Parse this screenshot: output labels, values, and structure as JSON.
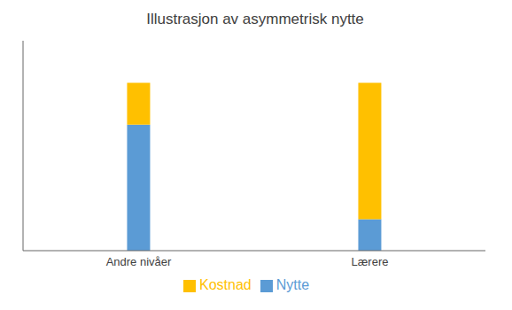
{
  "chart_data": {
    "type": "bar",
    "title": "Illustrasjon av asymmetrisk nytte",
    "categories": [
      "Andre nivåer",
      "Lærere"
    ],
    "series": [
      {
        "name": "Nytte",
        "color": "#5B9BD5",
        "values": [
          60,
          15
        ]
      },
      {
        "name": "Kostnad",
        "color": "#FFC000",
        "values": [
          20,
          65
        ]
      }
    ],
    "stacked": true,
    "ylim": [
      0,
      100
    ],
    "yticks": [],
    "grid": false,
    "legend": "bottom",
    "tick_labels": "x"
  }
}
